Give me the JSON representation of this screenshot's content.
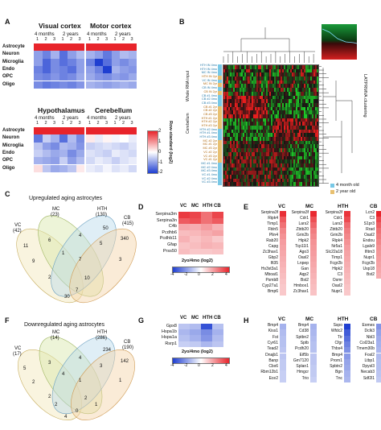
{
  "panels": {
    "A": "A",
    "B": "B",
    "C": "C",
    "D": "D",
    "E": "E",
    "F": "F",
    "G": "G",
    "H": "H"
  },
  "panelA": {
    "titles": [
      "Visual cortex",
      "Motor cortex",
      "Hypothalamus",
      "Cerebellum"
    ],
    "age_4m": "4 months",
    "age_2y": "2 years",
    "reps": [
      "1",
      "2",
      "3",
      "1",
      "2",
      "3"
    ],
    "rows": [
      "Astrocyte",
      "Neuron",
      "Microglia",
      "Endo",
      "OPC",
      "Oligo"
    ],
    "colorbar_label": "Row-standard (log2)",
    "colorbar_ticks": [
      "2",
      "1",
      "0",
      "-1",
      "-2"
    ],
    "colors": {
      "high": "#e8242b",
      "low": "#1f3fd1",
      "mid": "#ffffff"
    },
    "heatmaps": [
      [
        [
          2.0,
          2.0,
          2.0,
          2.0,
          2.0,
          2.0
        ],
        [
          -1.0,
          -1.3,
          -0.8,
          -1.5,
          -1.0,
          -0.7
        ],
        [
          -1.0,
          -1.6,
          -1.2,
          -1.5,
          -1.3,
          -1.0
        ],
        [
          -1.3,
          -1.6,
          -1.2,
          -1.3,
          -1.5,
          -1.0
        ],
        [
          -1.2,
          -1.3,
          -1.1,
          -1.3,
          -1.2,
          -0.9
        ],
        [
          -1.2,
          -1.4,
          -1.3,
          -1.2,
          -1.3,
          -1.1
        ]
      ],
      [
        [
          2.0,
          2.0,
          2.0,
          2.0,
          2.0,
          2.0
        ],
        [
          -0.8,
          -1.0,
          -1.4,
          -1.0,
          -0.7,
          -0.8
        ],
        [
          -1.3,
          -2.0,
          -1.5,
          -1.0,
          -1.2,
          -1.0
        ],
        [
          -1.0,
          -1.3,
          -2.0,
          -0.8,
          -1.0,
          -1.1
        ],
        [
          -0.9,
          -1.1,
          -1.2,
          -1.0,
          -1.1,
          -0.9
        ],
        [
          -0.8,
          -0.9,
          -1.0,
          -0.9,
          -0.8,
          -0.9
        ]
      ],
      [
        [
          2.0,
          2.0,
          2.0,
          2.0,
          2.0,
          2.0
        ],
        [
          -1.4,
          -0.5,
          -0.8,
          -1.5,
          -0.7,
          -1.2
        ],
        [
          -0.6,
          -1.0,
          -1.2,
          -0.7,
          -0.8,
          -1.1
        ],
        [
          -0.5,
          -0.7,
          -0.9,
          -0.8,
          -1.2,
          -0.9
        ],
        [
          -0.8,
          -0.9,
          -1.0,
          -0.5,
          -1.0,
          -0.7
        ],
        [
          0.3,
          -0.6,
          -0.9,
          -0.8,
          -0.6,
          0.2
        ]
      ],
      [
        [
          2.0,
          2.0,
          2.0,
          2.0,
          2.0,
          2.0
        ],
        [
          0.2,
          -0.2,
          0.1,
          -0.1,
          0.0,
          -0.2
        ],
        [
          -0.5,
          -0.4,
          -0.3,
          -0.4,
          -0.5,
          -0.3
        ],
        [
          -0.3,
          -0.4,
          -0.5,
          -0.2,
          -0.3,
          -0.4
        ],
        [
          -0.4,
          -0.2,
          -0.3,
          -0.5,
          -0.3,
          -0.2
        ],
        [
          -0.2,
          -0.3,
          -0.1,
          -0.3,
          -0.2,
          -0.4
        ]
      ]
    ]
  },
  "panelB": {
    "left_label": "Whole RNA input",
    "mid_label": "Cerebellum",
    "right_label": "LATPRMVA clustering",
    "legend": [
      "4 month old",
      "2 year old"
    ],
    "legend_colors": [
      "#78c8e6",
      "#e8c070"
    ],
    "samples": [
      "HTH IN 4mo",
      "HTH IN 4mo",
      "MC IN 4mo",
      "HTH IN 2yr",
      "VC IN 4mo",
      "MC IN 2yr",
      "CB IN 4mo",
      "CB IN 2yr",
      "CB #1 4mo",
      "CB #2 4mo",
      "CB #3 4mo",
      "CB #1 2yr",
      "CB #2 2yr",
      "CB #3 2yr",
      "HTH #1 2yr",
      "HTH #2 2yr",
      "HTH #3 2yr",
      "HTH #2 4mo",
      "HTH #1 4mo",
      "HTH #3 4mo",
      "MC #2 2yr",
      "MC #1 2yr",
      "MC #3 2yr",
      "VC #2 2yr",
      "VC #3 2yr",
      "VC #1 2yr",
      "MC #1 4mo",
      "MC #2 4mo",
      "MC #3 4mo",
      "VC #1 4mo",
      "VC #2 4mo",
      "VC #3 4mo"
    ]
  },
  "panelC": {
    "title": "Upregulated aging astrocytes",
    "sets": [
      {
        "name": "VC",
        "count": "(42)"
      },
      {
        "name": "MC",
        "count": "(23)"
      },
      {
        "name": "HTH",
        "count": "(130)"
      },
      {
        "name": "CB",
        "count": "(415)"
      }
    ],
    "numbers": [
      "50",
      "340",
      "11",
      "6",
      "4",
      "5",
      "9",
      "1",
      "7",
      "3",
      "2",
      "10",
      "7",
      "30"
    ]
  },
  "panelF": {
    "title": "Downregulated aging astrocytes",
    "sets": [
      {
        "name": "VC",
        "count": "(17)"
      },
      {
        "name": "MC",
        "count": "(14)"
      },
      {
        "name": "HTH",
        "count": "(286)"
      },
      {
        "name": "CB",
        "count": "(190)"
      }
    ],
    "numbers": [
      "234",
      "142",
      "5",
      "3",
      "4",
      "3",
      "2",
      "4",
      "1",
      "1",
      "2",
      "2",
      "0",
      "4",
      "2",
      "1"
    ]
  },
  "panelD": {
    "cols": [
      "VC",
      "MC",
      "HTH",
      "CB"
    ],
    "genes": [
      "Serpina3m",
      "Serpina3n",
      "C4b",
      "Pcdhb6",
      "Pcdhb11",
      "Gfap",
      "Prss50"
    ],
    "values": [
      [
        3.6,
        3.4,
        2.6,
        3.4
      ],
      [
        3.0,
        3.2,
        2.6,
        3.0
      ],
      [
        1.6,
        1.5,
        1.8,
        1.4
      ],
      [
        1.2,
        1.3,
        1.5,
        1.7
      ],
      [
        1.4,
        1.1,
        1.3,
        1.0
      ],
      [
        1.1,
        1.2,
        1.4,
        1.3
      ],
      [
        1.2,
        1.0,
        1.0,
        1.1
      ]
    ],
    "scale_label": "2yo/4mo (log2)",
    "ticks": [
      "-4",
      "-2",
      "0",
      "2",
      "4"
    ]
  },
  "panelE": {
    "VC": {
      "name": "VC",
      "genes": [
        "Serpina3f",
        "Ripk4",
        "Timp1",
        "Fbln5",
        "Plin4",
        "Rab20",
        "Capg",
        "Zc3hav1",
        "Gbp2",
        "Ifi35",
        "Hs3st3a1",
        "Mboat1",
        "Psmb8",
        "Cyp27a1",
        "Bmp6"
      ],
      "values": [
        3.8,
        3.0,
        2.6,
        2.2,
        2.0,
        1.8,
        1.7,
        1.6,
        1.5,
        1.4,
        1.3,
        1.2,
        1.1,
        1.0,
        1.0
      ]
    },
    "MC": {
      "name": "MC",
      "genes": [
        "Serpina3f",
        "Cdr1",
        "Lars2",
        "Zbtb20",
        "Grin2b",
        "Hipk2",
        "Tcp11l1",
        "Ago3",
        "Oasl2",
        "Lnpep",
        "Gan",
        "Aqp2",
        "Bst2",
        "Hmbox1",
        "Zc3hav1"
      ],
      "values": [
        3.9,
        3.2,
        2.8,
        2.4,
        2.2,
        2.0,
        1.9,
        1.8,
        1.7,
        1.6,
        1.5,
        1.4,
        1.3,
        1.2,
        1.1
      ]
    },
    "HTH": {
      "name": "HTH",
      "genes": [
        "Serpina3f",
        "Cdr1",
        "Lars2",
        "Zbtb20",
        "Grin2b",
        "Ripk4",
        "Nr5a1",
        "Slc22a18",
        "Timp1",
        "Fcgr2b",
        "Hipk2",
        "C3",
        "Osmr",
        "Oasl2",
        "Nupr1"
      ],
      "values": [
        3.7,
        3.3,
        2.7,
        2.4,
        2.2,
        2.0,
        1.8,
        1.7,
        1.6,
        1.5,
        1.4,
        1.3,
        1.2,
        1.1,
        1.0
      ]
    },
    "CB": {
      "name": "CB",
      "genes": [
        "Lcn2",
        "C3",
        "S1pr3",
        "Rrad",
        "Oasl2",
        "Endou",
        "Lgals9",
        "Ifitm3",
        "Nupr1",
        "Fcgr2b",
        "Usp18",
        "Bst2"
      ],
      "values": [
        4.0,
        3.3,
        2.9,
        2.6,
        2.4,
        2.2,
        2.0,
        1.9,
        1.8,
        1.7,
        1.6,
        1.5
      ]
    }
  },
  "panelG": {
    "cols": [
      "VC",
      "MC",
      "HTH",
      "CB"
    ],
    "genes": [
      "Gpx8",
      "Hspa1b",
      "Hspa1a",
      "Rsrp1"
    ],
    "values": [
      [
        -1.2,
        -1.4,
        -3.6,
        -1.3
      ],
      [
        -1.5,
        -1.8,
        -2.4,
        -1.6
      ],
      [
        -1.3,
        -1.6,
        -2.2,
        -1.4
      ],
      [
        -1.0,
        -1.1,
        -1.5,
        -1.2
      ]
    ],
    "scale_label": "2yo/4mo (log2)",
    "ticks": [
      "-4",
      "-2",
      "0",
      "2",
      "4"
    ]
  },
  "panelH": {
    "VC": {
      "name": "VC",
      "genes": [
        "Bmp4",
        "Kiss1",
        "Fst",
        "Cyr61",
        "Tead2",
        "Dnajb1",
        "Banp",
        "Cbx6",
        "Rbm12b1",
        "Ece2"
      ],
      "values": [
        -1.6,
        -1.4,
        -1.3,
        -1.3,
        -1.2,
        -1.2,
        -1.1,
        -1.1,
        -1.0,
        -1.0
      ]
    },
    "MC": {
      "name": "MC",
      "genes": [
        "Bmp4",
        "Cd38",
        "Sptbn2",
        "Sptb",
        "Pcdh20",
        "Eif5b",
        "Gm7120",
        "Splan1",
        "Hmgcr",
        "Trio"
      ],
      "values": [
        -1.6,
        -1.5,
        -1.4,
        -1.3,
        -1.3,
        -1.2,
        -1.2,
        -1.1,
        -1.1,
        -1.0
      ]
    },
    "HTH": {
      "name": "HTH",
      "genes": [
        "Sspo",
        "Wfdc2",
        "Ttr",
        "Cfgr",
        "Thbs4",
        "Bmp4",
        "Prom1",
        "Spbtn2",
        "Bgn",
        "Tnc"
      ],
      "values": [
        -4.0,
        -3.4,
        -3.0,
        -2.6,
        -2.3,
        -2.1,
        -1.9,
        -1.8,
        -1.6,
        -1.5
      ]
    },
    "CB": {
      "name": "CB",
      "genes": [
        "Eomes",
        "Dclk3",
        "Nbl3",
        "Col23a1",
        "Tmem30b",
        "Fosl2",
        "Ltbp1",
        "Dpysl3",
        "Necab3",
        "Sdf2l1"
      ],
      "values": [
        -2.2,
        -1.9,
        -1.7,
        -1.6,
        -1.5,
        -1.4,
        -1.3,
        -1.3,
        -1.2,
        -1.1
      ]
    }
  }
}
